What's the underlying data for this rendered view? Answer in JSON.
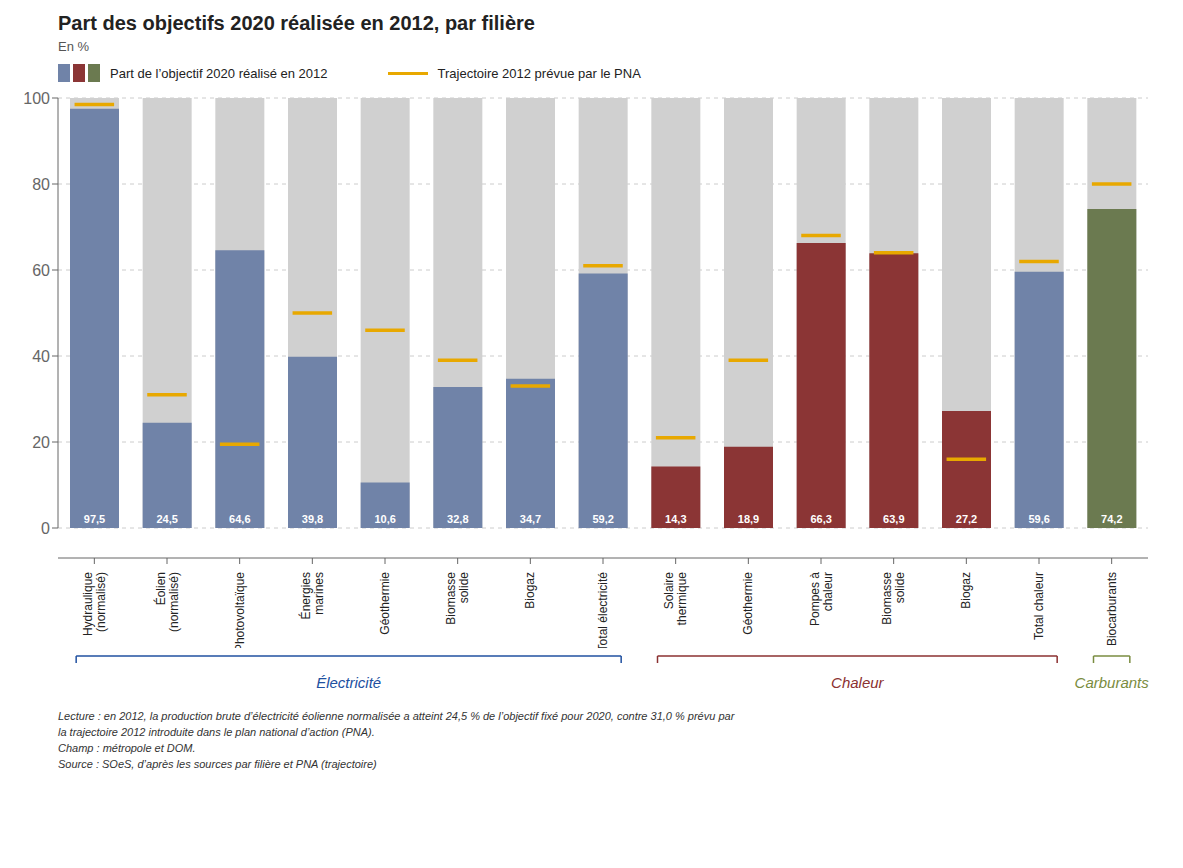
{
  "chart_data": {
    "type": "bar",
    "title": "Part des objectifs 2020 réalisée en 2012, par filière",
    "subtitle": "En %",
    "categories": [
      "Hydraulique\n(normalisé)",
      "Éolien\n(normalisé)",
      "Photovoltaïque",
      "Énergies\nmarines",
      "Géothermie",
      "Biomasse\nsolide",
      "Biogaz",
      "Total électricité",
      "Solaire\nthermique",
      "Géothermie",
      "Pompes à\nchaleur",
      "Biomasse\nsolide",
      "Biogaz",
      "Total chaleur",
      "Biocarburants"
    ],
    "series": [
      {
        "values": [
          100,
          100,
          100,
          100,
          100,
          100,
          100,
          100,
          100,
          100,
          100,
          100,
          100,
          100,
          100
        ],
        "color": "#d0d0d0"
      },
      {
        "name": "Part de l’objectif 2020 réalisé en 2012",
        "values": [
          97.5,
          24.5,
          64.6,
          39.8,
          10.6,
          32.8,
          34.7,
          59.2,
          14.3,
          18.9,
          66.3,
          63.9,
          27.2,
          59.6,
          74.2
        ],
        "value_labels": [
          "97,5",
          "24,5",
          "64,6",
          "39,8",
          "10,6",
          "32,8",
          "34,7",
          "59,2",
          "14,3",
          "18,9",
          "66,3",
          "63,9",
          "27,2",
          "59,6",
          "74,2"
        ],
        "data_labels": true,
        "colors": [
          "#7083a8",
          "#7083a8",
          "#7083a8",
          "#7083a8",
          "#7083a8",
          "#7083a8",
          "#7083a8",
          "#7083a8",
          "#8b3535",
          "#8b3535",
          "#8b3535",
          "#8b3535",
          "#8b3535",
          "#7083a8",
          "#6b7a50"
        ]
      },
      {
        "name": "Trajectoire 2012 prévue par le PNA",
        "type": "scatter",
        "marker": "hline",
        "color": "#e8a800",
        "values": [
          98.5,
          31.0,
          19.5,
          50.0,
          46.0,
          39.0,
          33.0,
          61.0,
          21.0,
          39.0,
          68.0,
          64.0,
          16.0,
          62.0,
          80.0
        ]
      }
    ],
    "ylim": [
      0,
      100
    ],
    "yticks": [
      0,
      20,
      40,
      60,
      80,
      100
    ],
    "grid": true,
    "annotations": [
      {
        "text": "Électricité",
        "color": "#2050a0",
        "start": 0,
        "end": 7
      },
      {
        "text": "Chaleur",
        "color": "#8b3030",
        "start": 8,
        "end": 13
      },
      {
        "text": "Carburants",
        "color": "#7a8c40",
        "start": 14,
        "end": 14
      },
      {
        "text": "Lecture : en 2012, la production brute d’électricité éolienne normalisée a atteint 24,5 % de l’objectif fixé pour 2020, contre 31,0 % prévu par"
      },
      {
        "text": "la trajectoire 2012 introduite dans le plan national d’action (PNA)."
      },
      {
        "text": "Champ : métropole et DOM."
      },
      {
        "text": "Source : SOeS, d’après les sources par filière et PNA (trajectoire)"
      }
    ]
  }
}
